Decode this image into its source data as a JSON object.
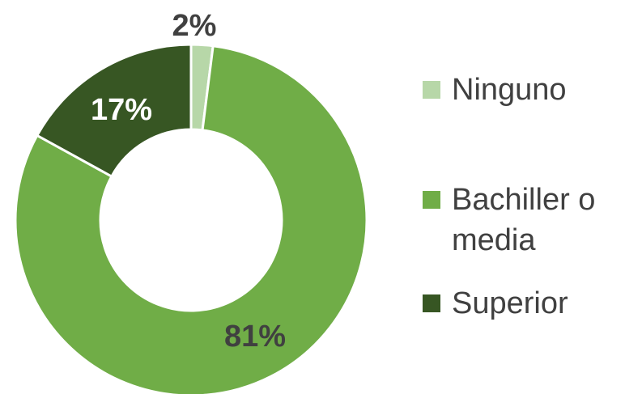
{
  "chart_data": {
    "type": "pie",
    "variant": "donut",
    "categories": [
      "Ninguno",
      "Bachiller o media",
      "Superior"
    ],
    "values": [
      2,
      81,
      17
    ],
    "labels": [
      "2%",
      "81%",
      "17%"
    ],
    "colors": [
      "#b7d7a8",
      "#70ad47",
      "#375623"
    ],
    "label_colors": [
      "#404040",
      "#404040",
      "#ffffff"
    ],
    "legend_position": "right"
  }
}
